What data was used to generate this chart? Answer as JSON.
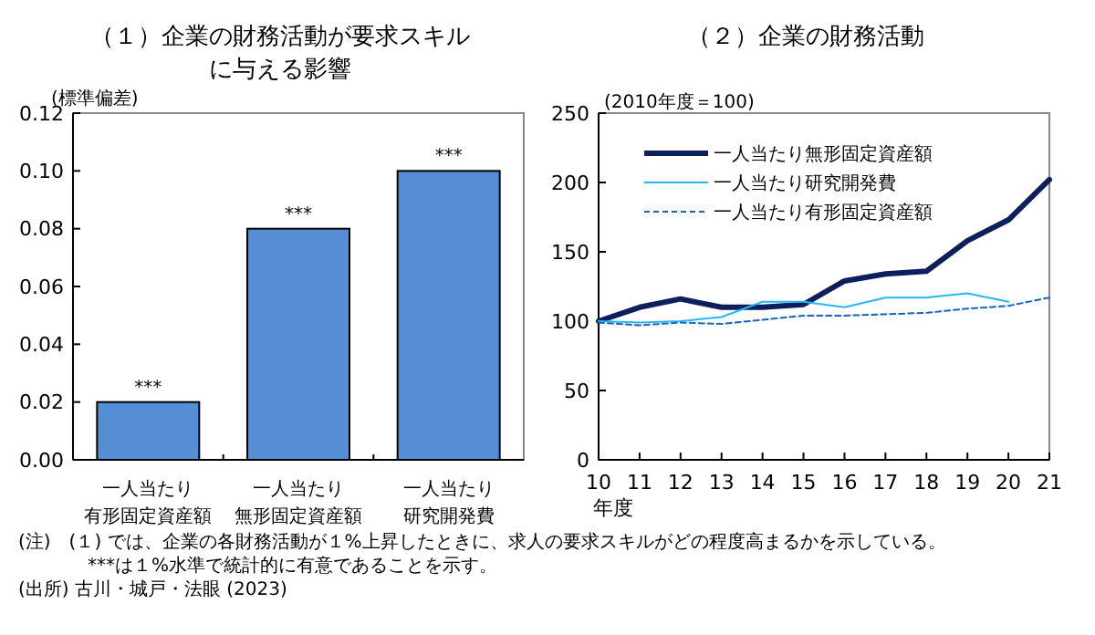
{
  "chart_data": [
    {
      "type": "bar",
      "title": "（１）企業の財務活動が要求スキルに与える影響",
      "ylabel": "(標準偏差)",
      "categories": [
        "一人当たり有形固定資産額",
        "一人当たり無形固定資産額",
        "一人当たり研究開発費"
      ],
      "values": [
        0.02,
        0.08,
        0.1
      ],
      "color": "#558ed5",
      "value_labels": [
        "***",
        "***",
        "***"
      ],
      "ylim": [
        0,
        0.12
      ],
      "yticks": [
        {
          "value": 0,
          "label": "0.00"
        },
        {
          "value": 0.02,
          "label": "0.02"
        },
        {
          "value": 0.04,
          "label": "0.04"
        },
        {
          "value": 0.06,
          "label": "0.06"
        },
        {
          "value": 0.08,
          "label": "0.08"
        },
        {
          "value": 0.1,
          "label": "0.10"
        },
        {
          "value": 0.12,
          "label": "0.12"
        }
      ],
      "grid": false,
      "legend": false,
      "annotations": [
        "(注)　(１) では、企業の各財務活動が１%上昇したときに、求人の要求スキルがどの程度高まるかを示している。",
        "***は１%水準で統計的に有意であることを示す。",
        "(出所) 古川・城戸・法眼 (2023)"
      ]
    },
    {
      "type": "line",
      "title": "（２）企業の財務活動",
      "ylabel": "(2010年度＝100)",
      "xlabel": "年度",
      "x": [
        10,
        11,
        12,
        13,
        14,
        15,
        16,
        17,
        18,
        19,
        20,
        21
      ],
      "xlim": [
        10,
        21
      ],
      "xticks": [
        10,
        11,
        12,
        13,
        14,
        15,
        16,
        17,
        18,
        19,
        20,
        21
      ],
      "ylim": [
        0,
        250
      ],
      "yticks": [
        0,
        50,
        100,
        150,
        200,
        250
      ],
      "grid": false,
      "legend": "top left",
      "series": [
        {
          "name": "一人当たり無形固定資産額",
          "color": "#0d1f5c",
          "values": [
            100,
            110,
            116,
            110,
            110,
            112,
            129,
            134,
            136,
            158,
            173,
            202
          ],
          "line_style": "solid"
        },
        {
          "name": "一人当たり研究開発費",
          "color": "#29b6f6",
          "values": [
            100,
            99,
            100,
            103,
            114,
            114,
            110,
            117,
            117,
            120,
            114,
            null
          ],
          "line_style": "solid"
        },
        {
          "name": "一人当たり有形固定資産額",
          "color": "#1565c0",
          "values": [
            99,
            97,
            99,
            98,
            101,
            104,
            104,
            105,
            106,
            109,
            111,
            117
          ],
          "line_style": "dashed"
        }
      ]
    }
  ]
}
